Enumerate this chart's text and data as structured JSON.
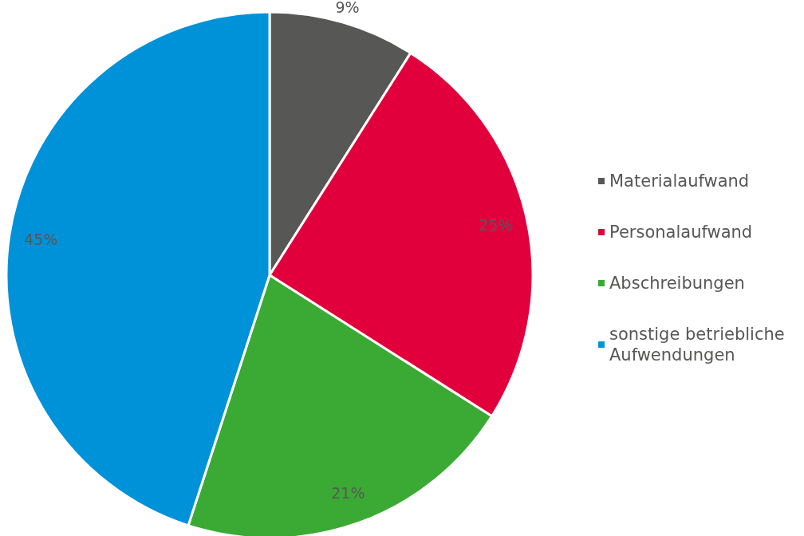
{
  "chart_data": {
    "type": "pie",
    "categories": [
      "Materialaufwand",
      "Personalaufwand",
      "Abschreibungen",
      "sonstige betriebliche Aufwendungen"
    ],
    "values": [
      9,
      25,
      21,
      45
    ],
    "colors": [
      "#575756",
      "#e2003c",
      "#3aaa35",
      "#0092d8"
    ],
    "value_labels": [
      "9%",
      "25%",
      "21%",
      "45%"
    ],
    "legend": "right"
  }
}
